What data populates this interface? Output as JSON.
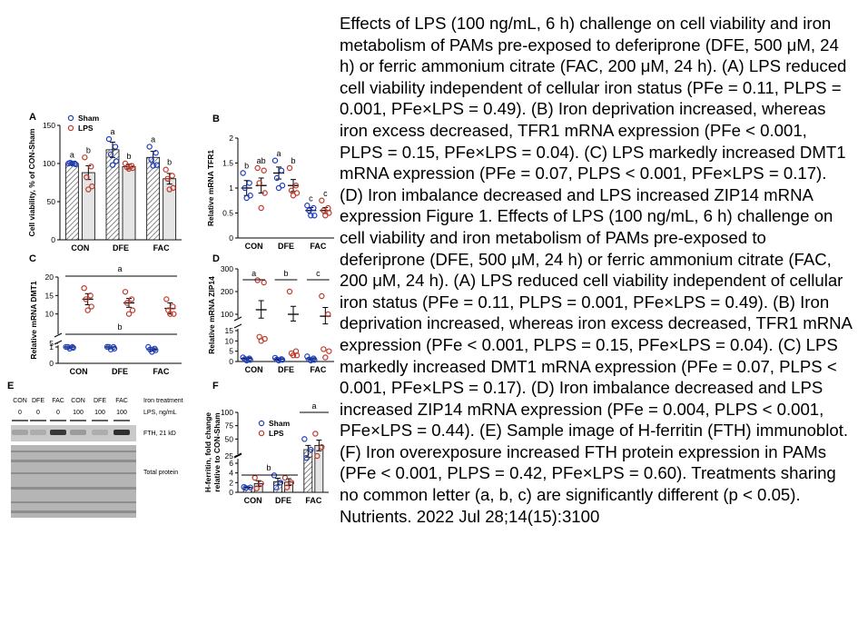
{
  "caption": "Effects of LPS (100 ng/mL, 6 h) challenge on cell viability and iron metabolism of PAMs pre-exposed to deferiprone (DFE, 500 μM, 24 h) or ferric ammonium citrate (FAC, 200 μM, 24 h). (A) LPS reduced cell viability independent of cellular iron status (PFe = 0.11, PLPS = 0.001, PFe×LPS = 0.49). (B) Iron deprivation increased, whereas iron excess decreased, TFR1 mRNA expression (PFe < 0.001, PLPS = 0.15, PFe×LPS = 0.04). (C) LPS markedly increased DMT1 mRNA expression (PFe = 0.07, PLPS < 0.001, PFe×LPS = 0.17). (D) Iron imbalance decreased and LPS increased ZIP14 mRNA expression Figure 1. Effects of LPS (100 ng/mL, 6 h) challenge on cell viability and iron metabolism of PAMs pre-exposed to deferiprone (DFE, 500 μM, 24 h) or ferric ammonium citrate (FAC, 200 μM, 24 h). (A) LPS reduced cell viability independent of cellular iron status (PFe = 0.11, PLPS = 0.001, PFe×LPS = 0.49). (B) Iron deprivation increased, whereas iron excess decreased, TFR1 mRNA expression (PFe < 0.001, PLPS = 0.15, PFe×LPS = 0.04). (C) LPS markedly increased DMT1 mRNA expression (PFe = 0.07, PLPS < 0.001, PFe×LPS = 0.17). (D) Iron imbalance decreased and LPS increased ZIP14 mRNA expression (PFe = 0.004, PLPS < 0.001, PFe×LPS = 0.44). (E) Sample image of H-ferritin (FTH) immunoblot. (F) Iron overexposure increased FTH protein expression in PAMs (PFe < 0.001, PLPS = 0.42, PFe×LPS = 0.60). Treatments sharing no common letter (a, b, c) are significantly different (p < 0.05). Nutrients. 2022 Jul 28;14(15):3100",
  "colors": {
    "sham": "#1f3fbf",
    "lps": "#c0392b",
    "axis": "#000000",
    "blot_bg": "#c9c9c9"
  },
  "chart_data": [
    {
      "panel": "A",
      "type": "bar",
      "categories": [
        "CON",
        "DFE",
        "FAC"
      ],
      "ylabel": "Cell viability, % of CON-Sham",
      "ylim": [
        0,
        150
      ],
      "yticks": [
        0,
        50,
        100,
        150
      ],
      "legend": [
        "Sham",
        "LPS"
      ],
      "legend_position": "top-left",
      "series": [
        {
          "name": "Sham",
          "values": [
            100,
            118,
            108
          ],
          "errors": [
            2,
            10,
            8
          ],
          "letters": [
            "a",
            "a",
            "a"
          ],
          "points": [
            [
              100,
              100,
              101,
              99,
              100
            ],
            [
              132,
              122,
              112,
              103,
              98
            ],
            [
              122,
              114,
              105,
              98,
              97
            ]
          ]
        },
        {
          "name": "LPS",
          "values": [
            88,
            96,
            80
          ],
          "errors": [
            9,
            3,
            7
          ],
          "letters": [
            "b",
            "b",
            "b"
          ],
          "points": [
            [
              108,
              96,
              82,
              70,
              66
            ],
            [
              100,
              97,
              95,
              94,
              93
            ],
            [
              92,
              84,
              80,
              68,
              66
            ]
          ]
        }
      ]
    },
    {
      "panel": "B",
      "type": "scatter",
      "categories": [
        "CON",
        "DFE",
        "FAC"
      ],
      "ylabel": "Relative mRNA TFR1",
      "ylim": [
        0,
        2.0
      ],
      "yticks": [
        0,
        0.5,
        1.0,
        1.5,
        2.0
      ],
      "series": [
        {
          "name": "Sham",
          "values": [
            1.0,
            1.3,
            0.55
          ],
          "errors": [
            0.15,
            0.12,
            0.06
          ],
          "letters": [
            "b",
            "a",
            "c"
          ],
          "points": [
            [
              1.3,
              1.1,
              1.0,
              0.85,
              0.8
            ],
            [
              1.55,
              1.35,
              1.2,
              1.05,
              1.0
            ],
            [
              0.65,
              0.6,
              0.55,
              0.45,
              0.45
            ]
          ]
        },
        {
          "name": "LPS",
          "values": [
            1.05,
            1.05,
            0.55
          ],
          "errors": [
            0.15,
            0.12,
            0.06
          ],
          "letters": [
            "ab",
            "b",
            "c"
          ],
          "points": [
            [
              1.4,
              1.35,
              1.1,
              0.9,
              0.6
            ],
            [
              1.4,
              1.05,
              0.95,
              0.9,
              0.85
            ],
            [
              0.75,
              0.6,
              0.55,
              0.5,
              0.45
            ]
          ]
        }
      ]
    },
    {
      "panel": "C",
      "type": "scatter",
      "categories": [
        "CON",
        "DFE",
        "FAC"
      ],
      "ylabel": "Relative mRNA DMT1",
      "ylim": [
        0,
        20
      ],
      "yticks": [
        0,
        1,
        5,
        10,
        15,
        20
      ],
      "axis_break": [
        1,
        5
      ],
      "group_letters": {
        "Sham": "b",
        "LPS": "a"
      },
      "series": [
        {
          "name": "Sham",
          "values": [
            1.0,
            1.0,
            0.85
          ],
          "errors": [
            0.1,
            0.1,
            0.1
          ],
          "points": [
            [
              1.1,
              1.0,
              1.0,
              0.95,
              0.9
            ],
            [
              1.15,
              1.0,
              1.0,
              0.9,
              0.85
            ],
            [
              1.0,
              0.9,
              0.85,
              0.8,
              0.7
            ]
          ]
        },
        {
          "name": "LPS",
          "values": [
            14,
            13,
            11.5
          ],
          "errors": [
            1.5,
            1.2,
            1.5
          ],
          "points": [
            [
              17,
              15,
              14,
              12,
              11
            ],
            [
              16,
              14,
              13,
              11,
              10
            ],
            [
              14,
              12,
              11,
              10,
              10
            ]
          ]
        }
      ]
    },
    {
      "panel": "D",
      "type": "scatter",
      "categories": [
        "CON",
        "DFE",
        "FAC"
      ],
      "ylabel": "Relative mRNA ZIP14",
      "ylim": [
        0,
        300
      ],
      "yticks": [
        0,
        5,
        10,
        15,
        100,
        200,
        300
      ],
      "axis_break": [
        15,
        100
      ],
      "letters": [
        "a",
        "b",
        "c"
      ],
      "series": [
        {
          "name": "Sham",
          "values": [
            1.5,
            1.2,
            1.3
          ],
          "errors": [
            0.6,
            0.5,
            0.5
          ],
          "points": [
            [
              2,
              1.5,
              1.2,
              0.8,
              0.5
            ],
            [
              1.8,
              1.2,
              1.0,
              0.8,
              0.5
            ],
            [
              2.5,
              1.5,
              1.0,
              0.8,
              0.5
            ]
          ]
        },
        {
          "name": "LPS",
          "values": [
            120,
            100,
            90
          ],
          "errors": [
            40,
            35,
            40
          ],
          "points": [
            [
              250,
              240,
              12,
              11,
              10
            ],
            [
              200,
              5,
              4,
              3,
              3
            ],
            [
              180,
              100,
              6,
              5,
              2
            ]
          ]
        }
      ]
    },
    {
      "panel": "F",
      "type": "bar",
      "categories": [
        "CON",
        "DFE",
        "FAC"
      ],
      "ylabel": "H-ferritin, fold change relative to CON-Sham",
      "ylim": [
        0,
        100
      ],
      "yticks": [
        0,
        2,
        4,
        6,
        25,
        50,
        75,
        100
      ],
      "axis_break": [
        6,
        25
      ],
      "legend": [
        "Sham",
        "LPS"
      ],
      "legend_position": "top-center",
      "group_letters": {
        "CON+DFE": "b",
        "FAC": "a"
      },
      "series": [
        {
          "name": "Sham",
          "values": [
            1.0,
            2.2,
            30
          ],
          "errors": [
            0.1,
            0.7,
            8
          ],
          "points": [
            [
              1.1,
              1.0,
              0.9
            ],
            [
              3.5,
              2.0,
              1.0
            ],
            [
              50,
              30,
              20
            ]
          ]
        },
        {
          "name": "LPS",
          "values": [
            1.8,
            2.1,
            38
          ],
          "errors": [
            0.6,
            0.7,
            10
          ],
          "points": [
            [
              3.0,
              1.8,
              0.8
            ],
            [
              3.0,
              2.0,
              1.0
            ],
            [
              60,
              35,
              25
            ]
          ]
        }
      ]
    }
  ],
  "blot": {
    "panel": "E",
    "lanes": [
      "CON",
      "DFE",
      "FAC",
      "CON",
      "DFE",
      "FAC"
    ],
    "lps": [
      "0",
      "0",
      "0",
      "100",
      "100",
      "100"
    ],
    "row_labels": {
      "treatment": "Iron treatment",
      "lps": "LPS, ng/mL"
    },
    "band_label": "FTH, 21 kD",
    "total_label": "Total protein",
    "band_intensity": [
      0.2,
      0.15,
      0.8,
      0.25,
      0.15,
      0.85
    ]
  },
  "ui": {
    "panel_labels": [
      "A",
      "B",
      "C",
      "D",
      "E",
      "F"
    ]
  }
}
